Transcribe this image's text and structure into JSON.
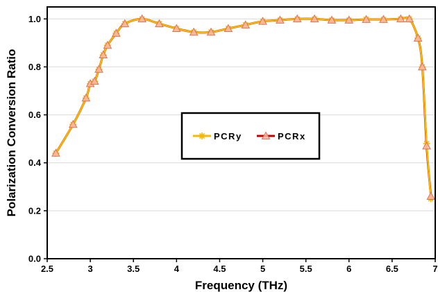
{
  "chart_data": {
    "type": "line",
    "title": "",
    "xlabel": "Frequency (THz)",
    "ylabel": "Polarization Conversion Ratio",
    "xlim": [
      2.5,
      7.0
    ],
    "ylim": [
      0.0,
      1.05
    ],
    "xticks": [
      "2.5",
      "3",
      "3.5",
      "4",
      "4.5",
      "5",
      "5.5",
      "6",
      "6.5",
      "7"
    ],
    "yticks": [
      "0.0",
      "0.2",
      "0.4",
      "0.6",
      "0.8",
      "1.0"
    ],
    "grid": "horizontal",
    "legend_position": "center",
    "series": [
      {
        "name": "PCRy",
        "color": "#f6b800",
        "marker": "asterisk",
        "x": [
          2.6,
          2.8,
          2.95,
          3.0,
          3.05,
          3.1,
          3.15,
          3.2,
          3.3,
          3.4,
          3.6,
          3.8,
          4.0,
          4.2,
          4.4,
          4.6,
          4.8,
          5.0,
          5.2,
          5.4,
          5.6,
          5.8,
          6.0,
          6.2,
          6.4,
          6.6,
          6.7,
          6.8,
          6.85,
          6.9,
          6.95
        ],
        "values": [
          0.44,
          0.56,
          0.67,
          0.73,
          0.74,
          0.79,
          0.85,
          0.89,
          0.94,
          0.98,
          1.0,
          0.98,
          0.96,
          0.945,
          0.945,
          0.96,
          0.975,
          0.99,
          0.995,
          1.0,
          1.0,
          0.995,
          0.995,
          0.998,
          0.998,
          1.0,
          1.0,
          0.92,
          0.8,
          0.48,
          0.25
        ]
      },
      {
        "name": "PCRx",
        "color": "#c00000",
        "marker": "triangle",
        "x": [
          2.6,
          2.8,
          2.95,
          3.0,
          3.05,
          3.1,
          3.15,
          3.2,
          3.3,
          3.4,
          3.6,
          3.8,
          4.0,
          4.2,
          4.4,
          4.6,
          4.8,
          5.0,
          5.2,
          5.4,
          5.6,
          5.8,
          6.0,
          6.2,
          6.4,
          6.6,
          6.7,
          6.8,
          6.85,
          6.9,
          6.95
        ],
        "values": [
          0.44,
          0.56,
          0.67,
          0.73,
          0.74,
          0.79,
          0.85,
          0.89,
          0.94,
          0.98,
          1.0,
          0.98,
          0.96,
          0.945,
          0.945,
          0.96,
          0.975,
          0.99,
          0.995,
          1.0,
          1.0,
          0.995,
          0.995,
          0.998,
          0.998,
          1.0,
          1.0,
          0.92,
          0.8,
          0.47,
          0.26
        ]
      }
    ]
  }
}
